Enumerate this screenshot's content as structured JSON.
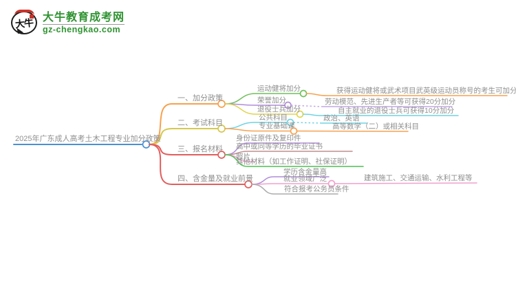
{
  "brand": {
    "name": "大牛教育成考网",
    "domain": "gz-chengkao.com",
    "icon_text": "大牛",
    "color": "#2f9331"
  },
  "mindmap": {
    "root": {
      "label": "2025年广东成人高考土木工程专业加分政策",
      "color": "#4a90d2"
    },
    "branches": [
      {
        "label": "一、加分政策",
        "color": "#f7a14e",
        "children": [
          {
            "label": "运动健将加分",
            "color": "#6fbf5a",
            "children": [
              {
                "label": "获得运动健将或武术项目武英级运动员称号的考生可加分",
                "color": "#f7a14e"
              }
            ]
          },
          {
            "label": "荣誉加分",
            "color": "#b18cd9",
            "children": [
              {
                "label": "劳动模范、先进生产者等可获得20分加分",
                "color": "#c3a7e6"
              }
            ]
          },
          {
            "label": "退役士兵加分",
            "color": "#e0d44f",
            "children": [
              {
                "label": "自主就业的退役士兵可获得10分加分",
                "color": "#6fd3e2"
              }
            ]
          }
        ]
      },
      {
        "label": "二、考试科目",
        "color": "#d4c94f",
        "children": [
          {
            "label": "公共科目",
            "color": "#6fd3e2",
            "children": [
              {
                "label": "政治、英语",
                "color": "#6fd3e2"
              }
            ]
          },
          {
            "label": "专业基础课",
            "color": "#f7a14e",
            "children": [
              {
                "label": "高等数学（二）或相关科目",
                "color": "#f7a14e"
              }
            ]
          }
        ]
      },
      {
        "label": "三、报名材料",
        "color": "#e25d5d",
        "children": [
          {
            "label": "身份证原件及复印件",
            "color": "#b18cd9"
          },
          {
            "label": "高中或同等学历的毕业证书",
            "color": "#c18d8d"
          },
          {
            "label": "照片",
            "color": "#f0a0cd"
          },
          {
            "label": "其他材料（如工作证明、社保证明）",
            "color": "#4cc052"
          }
        ]
      },
      {
        "label": "四、含金量及就业前景",
        "color": "#e25d5d",
        "children": [
          {
            "label": "学历含金量高",
            "color": "#b18cd9"
          },
          {
            "label": "就业领域广泛",
            "color": "#f0a0cd",
            "children": [
              {
                "label": "建筑施工、交通运输、水利工程等",
                "color": "#f0a0cd"
              }
            ]
          },
          {
            "label": "符合报考公务员条件",
            "color": "#ababab"
          }
        ]
      }
    ]
  }
}
